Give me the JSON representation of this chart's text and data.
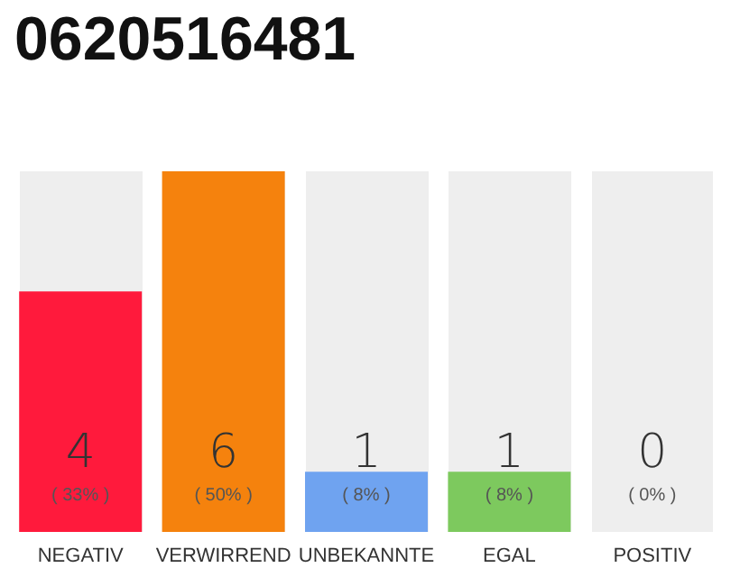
{
  "chart_data": {
    "type": "bar",
    "title": "0620516481",
    "categories": [
      "NEGATIV",
      "VERWIRREND",
      "UNBEKANNTE",
      "EGAL",
      "POSITIV"
    ],
    "values": [
      4,
      6,
      1,
      1,
      0
    ],
    "value_labels": [
      "4\n( 33% )",
      "6\n( 50% )",
      "1\n( 8% )",
      "1\n( 8% )",
      "0\n( 0% )"
    ],
    "colors": [
      "#ff1a3c",
      "#f5820d",
      "#6fa3f0",
      "#7dc95e",
      null
    ],
    "tick_labels": "x",
    "grid": false
  }
}
